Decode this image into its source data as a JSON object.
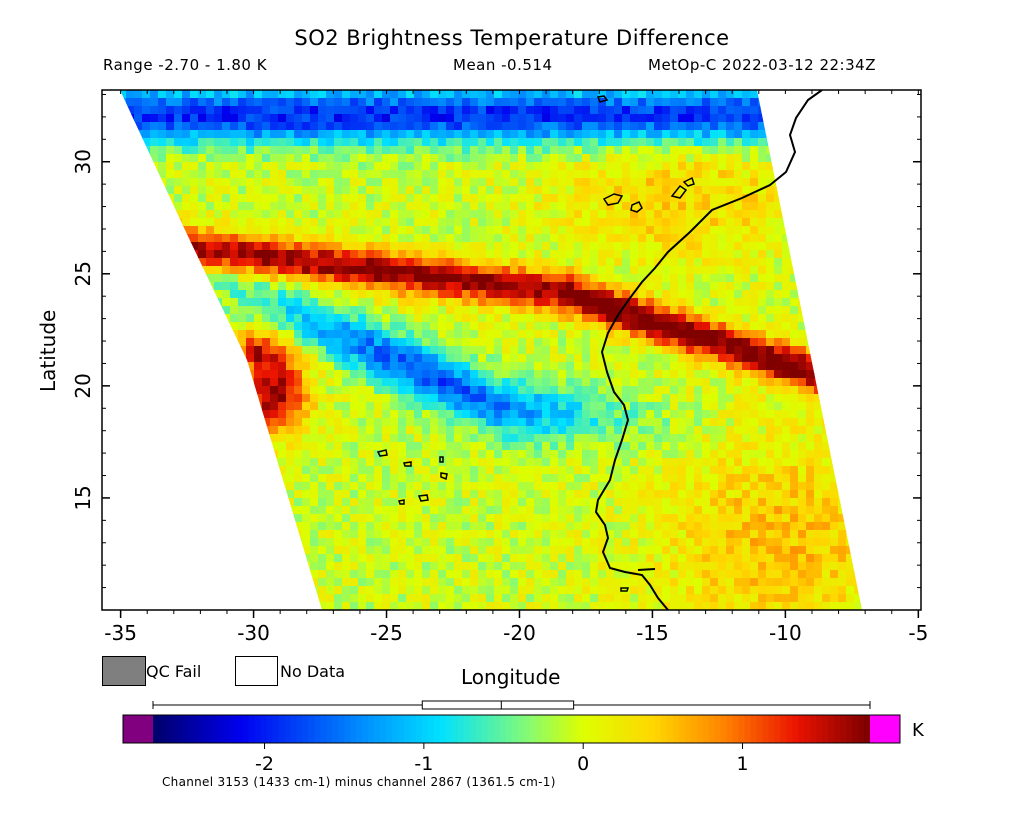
{
  "header": {
    "title": "SO2 Brightness Temperature Difference",
    "range_label": "Range -2.70 - 1.80 K",
    "mean_label": "Mean -0.514",
    "satellite_time": "MetOp-C 2022-03-12 22:34Z"
  },
  "axes": {
    "ylabel": "Latitude",
    "xlabel": "Longitude",
    "y_ticks": [
      "30",
      "25",
      "20",
      "15"
    ],
    "x_ticks": [
      "-35",
      "-30",
      "-25",
      "-20",
      "-15",
      "-10",
      "-5"
    ],
    "x_range": [
      -35.7,
      -4.9
    ],
    "y_range": [
      10,
      33.2
    ]
  },
  "legend": {
    "qc_fail_label": "QC Fail",
    "no_data_label": "No Data",
    "qc_fail_color": "#7f7f7f",
    "no_data_color": "#ffffff"
  },
  "colorbar": {
    "unit": "K",
    "ticks": [
      "-2",
      "-1",
      "0",
      "1"
    ],
    "tick_values": [
      -2,
      -1,
      0,
      1
    ],
    "range": [
      -2.7,
      1.8
    ],
    "min": -2.7,
    "max": 1.8,
    "mean": -0.514,
    "under_color": "#800080",
    "over_color": "#ff00ff",
    "footnote": "Channel 3153 (1433 cm-1) minus channel 2867 (1361.5 cm-1)"
  },
  "colors": {
    "coastline": "#000000",
    "axis": "#000000"
  }
}
